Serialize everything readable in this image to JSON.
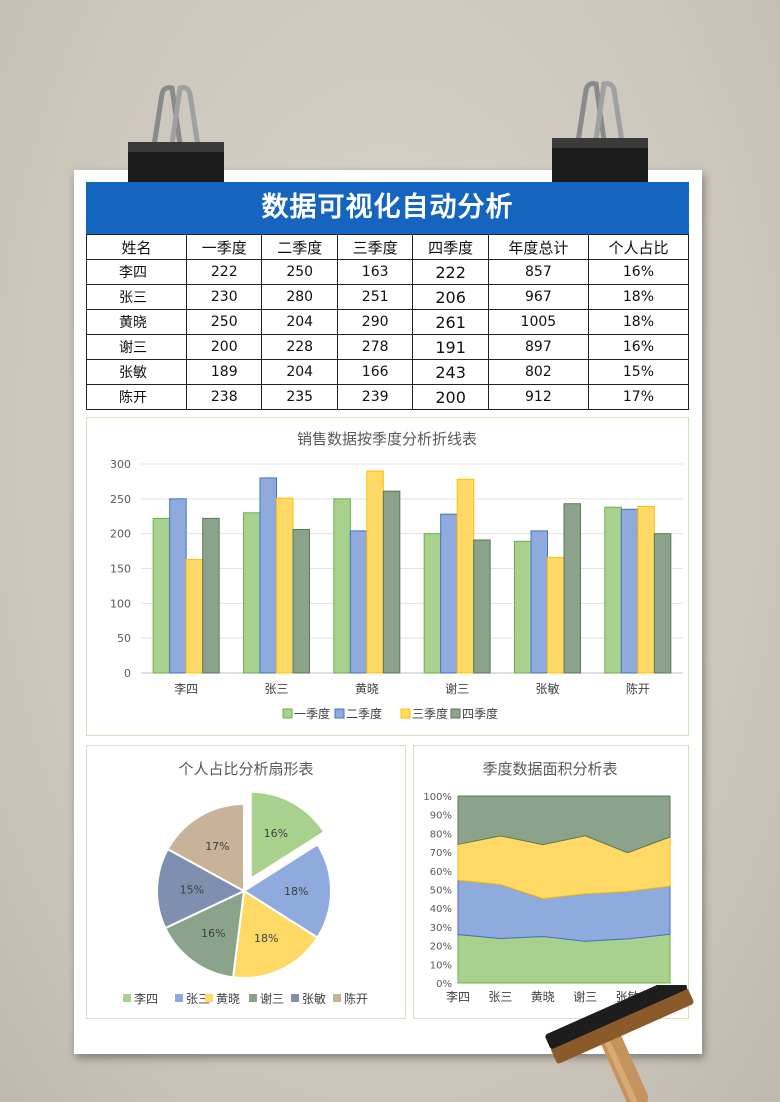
{
  "title": "数据可视化自动分析",
  "table": {
    "headers": [
      "姓名",
      "一季度",
      "二季度",
      "三季度",
      "四季度",
      "年度总计",
      "个人占比"
    ],
    "rows": [
      [
        "李四",
        "222",
        "250",
        "163",
        "222",
        "857",
        "16%"
      ],
      [
        "张三",
        "230",
        "280",
        "251",
        "206",
        "967",
        "18%"
      ],
      [
        "黄晓",
        "250",
        "204",
        "290",
        "261",
        "1005",
        "18%"
      ],
      [
        "谢三",
        "200",
        "228",
        "278",
        "191",
        "897",
        "16%"
      ],
      [
        "张敏",
        "189",
        "204",
        "166",
        "243",
        "802",
        "15%"
      ],
      [
        "陈开",
        "238",
        "235",
        "239",
        "200",
        "912",
        "17%"
      ]
    ]
  },
  "colors": {
    "q1": "#a9d18e",
    "q2": "#8faadc",
    "q3": "#ffd966",
    "q4": "#8aa38a",
    "pie_q5": "#7f8fb0",
    "pie_q6": "#c9b29a"
  },
  "chart_data": [
    {
      "type": "bar",
      "title": "销售数据按季度分析折线表",
      "categories": [
        "李四",
        "张三",
        "黄晓",
        "谢三",
        "张敏",
        "陈开"
      ],
      "series": [
        {
          "name": "一季度",
          "values": [
            222,
            230,
            250,
            200,
            189,
            238
          ]
        },
        {
          "name": "二季度",
          "values": [
            250,
            280,
            204,
            228,
            204,
            235
          ]
        },
        {
          "name": "三季度",
          "values": [
            163,
            251,
            290,
            278,
            166,
            239
          ]
        },
        {
          "name": "四季度",
          "values": [
            222,
            206,
            261,
            191,
            243,
            200
          ]
        }
      ],
      "ylim": [
        0,
        300
      ],
      "yticks": [
        "0",
        "50",
        "100",
        "150",
        "200",
        "250",
        "300"
      ],
      "legend": "bottom"
    },
    {
      "type": "pie",
      "title": "个人占比分析扇形表",
      "labels": [
        "李四",
        "张三",
        "黄晓",
        "谢三",
        "张敏",
        "陈开"
      ],
      "values": [
        16,
        18,
        18,
        16,
        15,
        17
      ],
      "value_labels": [
        "16%",
        "18%",
        "18%",
        "16%",
        "15%",
        "17%"
      ],
      "legend": "bottom"
    },
    {
      "type": "area",
      "title": "季度数据面积分析表",
      "categories": [
        "李四",
        "张三",
        "黄晓",
        "谢三",
        "张敏",
        "陈"
      ],
      "series": [
        {
          "name": "一季度",
          "values": [
            222,
            230,
            250,
            200,
            189,
            238
          ]
        },
        {
          "name": "二季度",
          "values": [
            250,
            280,
            204,
            228,
            204,
            235
          ]
        },
        {
          "name": "三季度",
          "values": [
            163,
            251,
            290,
            278,
            166,
            239
          ]
        },
        {
          "name": "四季度",
          "values": [
            222,
            206,
            261,
            191,
            243,
            200
          ]
        }
      ],
      "stacking": "percent",
      "yticks": [
        "0%",
        "10%",
        "20%",
        "30%",
        "40%",
        "50%",
        "60%",
        "70%",
        "80%",
        "90%",
        "100%"
      ]
    }
  ]
}
